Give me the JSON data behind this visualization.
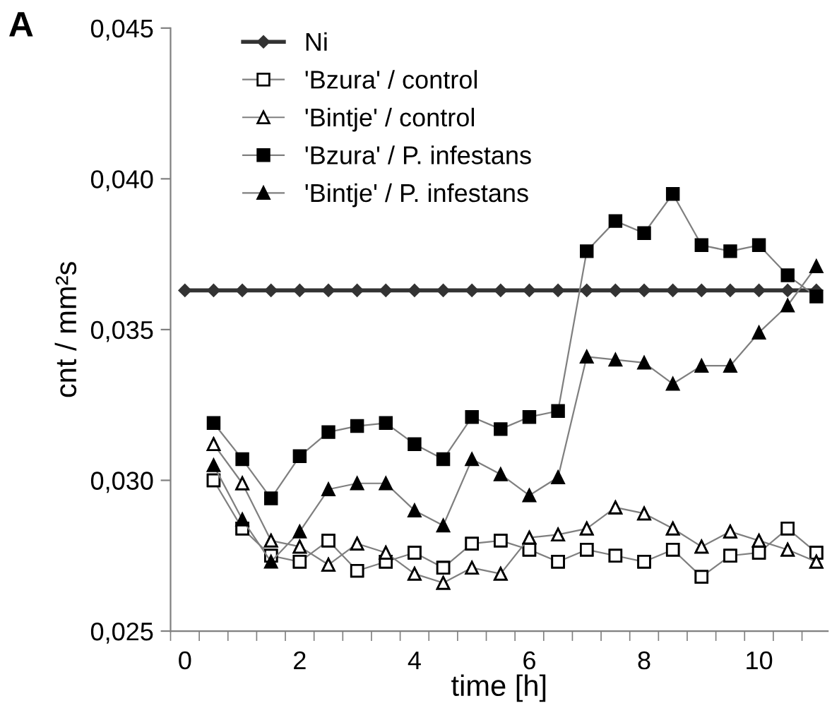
{
  "chart_data": {
    "type": "line",
    "xlabel": "time [h]",
    "ylabel": "cnt / mm²s",
    "annotations": [
      "A"
    ],
    "x": [
      0,
      0.5,
      1,
      1.5,
      2,
      2.5,
      3,
      3.5,
      4,
      4.5,
      5,
      5.5,
      6,
      6.5,
      7,
      7.5,
      8,
      8.5,
      9,
      9.5,
      10,
      10.5,
      11
    ],
    "series": [
      {
        "name": "Ni",
        "color": "#333333",
        "marker": "diamond",
        "values": [
          0.0363,
          0.0363,
          0.0363,
          0.0363,
          0.0363,
          0.0363,
          0.0363,
          0.0363,
          0.0363,
          0.0363,
          0.0363,
          0.0363,
          0.0363,
          0.0363,
          0.0363,
          0.0363,
          0.0363,
          0.0363,
          0.0363,
          0.0363,
          0.0363,
          0.0363,
          0.0363
        ]
      },
      {
        "name": "'Bzura' / control",
        "color": "#000000",
        "marker": "square",
        "colors": [
          "#ffffff",
          "#ffffff",
          "#ffffff",
          "#ffffff",
          "#ffffff",
          "#ffffff",
          "#ffffff",
          "#ffffff",
          "#ffffff",
          "#ffffff",
          "#ffffff",
          "#ffffff",
          "#ffffff",
          "#ffffff",
          "#ffffff",
          "#ffffff",
          "#ffffff",
          "#ffffff",
          "#ffffff",
          "#ffffff",
          "#ffffff",
          "#ffffff",
          "#ffffff"
        ],
        "values": [
          null,
          0.03,
          0.0284,
          0.0275,
          0.0273,
          0.028,
          0.027,
          0.0273,
          0.0276,
          0.0271,
          0.0279,
          0.028,
          0.0277,
          0.0273,
          0.0277,
          0.0275,
          0.0273,
          0.0277,
          0.0268,
          0.0275,
          0.0276,
          0.0284,
          0.0276
        ]
      },
      {
        "name": "'Bintje' / control",
        "color": "#000000",
        "marker": "triangle",
        "colors": [
          "#ffffff",
          "#ffffff",
          "#ffffff",
          "#ffffff",
          "#ffffff",
          "#ffffff",
          "#ffffff",
          "#ffffff",
          "#ffffff",
          "#ffffff",
          "#ffffff",
          "#ffffff",
          "#ffffff",
          "#ffffff",
          "#ffffff",
          "#ffffff",
          "#ffffff",
          "#ffffff",
          "#ffffff",
          "#ffffff",
          "#ffffff",
          "#ffffff",
          "#ffffff"
        ],
        "values": [
          null,
          0.0312,
          0.0299,
          0.028,
          0.0278,
          0.0272,
          0.0279,
          0.0276,
          0.0269,
          0.0266,
          0.0271,
          0.0269,
          0.0281,
          0.0282,
          0.0284,
          0.0291,
          0.0289,
          0.0284,
          0.0278,
          0.0283,
          0.028,
          0.0277,
          0.0273
        ]
      },
      {
        "name": "'Bzura' / P. infestans",
        "color": "#000000",
        "marker": "square",
        "values": [
          null,
          0.0319,
          0.0307,
          0.0294,
          0.0308,
          0.0316,
          0.0318,
          0.0319,
          0.0312,
          0.0307,
          0.0321,
          0.0317,
          0.0321,
          0.0323,
          0.0376,
          0.0386,
          0.0382,
          0.0395,
          0.0378,
          0.0376,
          0.0378,
          0.0368,
          0.0361
        ]
      },
      {
        "name": "'Bintje' / P. infestans",
        "color": "#000000",
        "marker": "triangle",
        "values": [
          null,
          0.0305,
          0.0287,
          0.0273,
          0.0283,
          0.0297,
          0.0299,
          0.0299,
          0.029,
          0.0285,
          0.0307,
          0.0302,
          0.0295,
          0.0301,
          0.0341,
          0.034,
          0.0339,
          0.0332,
          0.0338,
          0.0338,
          0.0349,
          0.0358,
          0.0371
        ]
      }
    ],
    "xlim": [
      -0.25,
      11.2
    ],
    "xticks": [
      {
        "value": -0.25,
        "label": null
      },
      0,
      {
        "value": 0.25,
        "label": null
      },
      {
        "value": 0.75,
        "label": null
      },
      {
        "value": 1.25,
        "label": null
      },
      {
        "value": 1.75,
        "label": null
      },
      2,
      {
        "value": 2.25,
        "label": null
      },
      {
        "value": 2.75,
        "label": null
      },
      {
        "value": 3.25,
        "label": null
      },
      {
        "value": 3.75,
        "label": null
      },
      4,
      {
        "value": 4.25,
        "label": null
      },
      {
        "value": 4.75,
        "label": null
      },
      {
        "value": 5.25,
        "label": null
      },
      {
        "value": 5.75,
        "label": null
      },
      6,
      {
        "value": 6.25,
        "label": null
      },
      {
        "value": 6.75,
        "label": null
      },
      {
        "value": 7.25,
        "label": null
      },
      {
        "value": 7.75,
        "label": null
      },
      8,
      {
        "value": 8.25,
        "label": null
      },
      {
        "value": 8.75,
        "label": null
      },
      {
        "value": 9.25,
        "label": null
      },
      {
        "value": 9.75,
        "label": null
      },
      10,
      {
        "value": 10.25,
        "label": null
      },
      {
        "value": 10.75,
        "label": null
      }
    ],
    "ylim": [
      0.025,
      0.045
    ],
    "yticks": [
      {
        "value": 0.025,
        "label": "0,025"
      },
      {
        "value": 0.03,
        "label": "0,030"
      },
      {
        "value": 0.035,
        "label": "0,035"
      },
      {
        "value": 0.04,
        "label": "0,040"
      },
      {
        "value": 0.045,
        "label": "0,045"
      }
    ],
    "grid": false,
    "legend": "top",
    "line_style": "solid"
  }
}
